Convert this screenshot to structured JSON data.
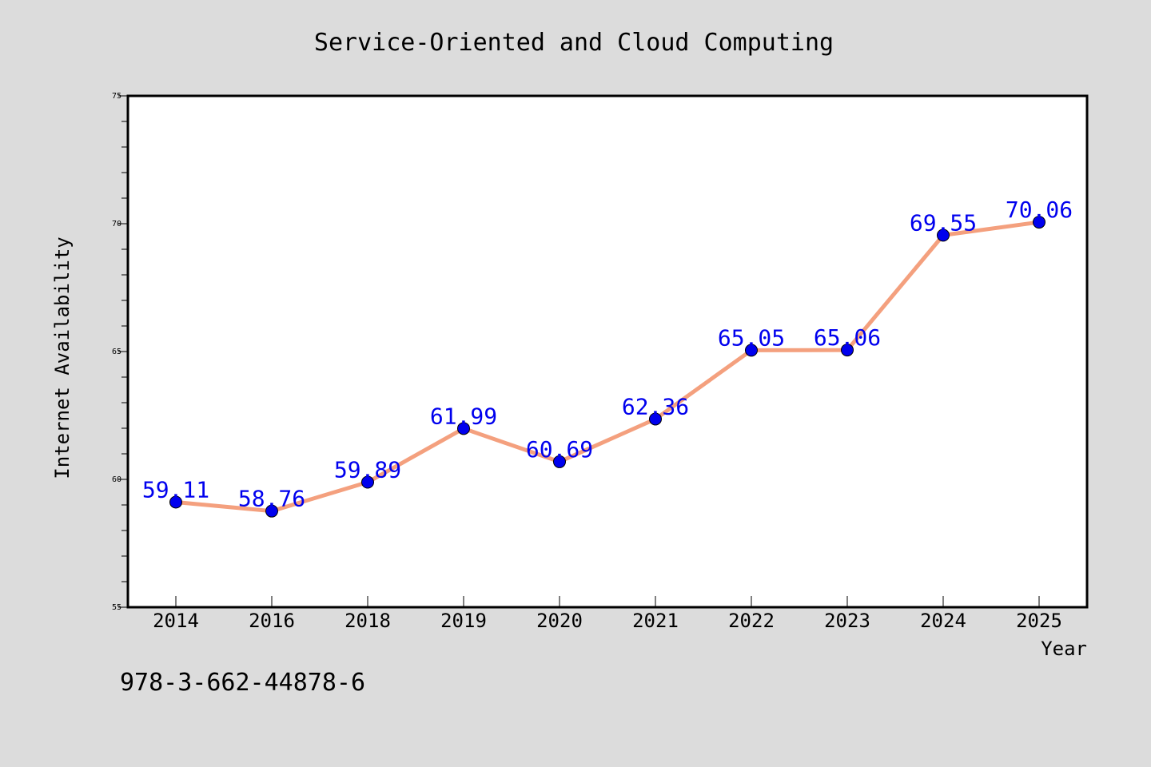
{
  "chart_data": {
    "type": "line",
    "title": "Service-Oriented and Cloud Computing",
    "xlabel": "Year",
    "ylabel": "Internet Availability",
    "categories": [
      "2014",
      "2016",
      "2018",
      "2019",
      "2020",
      "2021",
      "2022",
      "2023",
      "2024",
      "2025"
    ],
    "series": [
      {
        "values": [
          59.11,
          58.76,
          59.89,
          61.99,
          60.69,
          62.36,
          65.05,
          65.06,
          69.55,
          70.06
        ],
        "labels": [
          "59.11",
          "58.76",
          "59.89",
          "61.99",
          "60.69",
          "62.36",
          "65.05",
          "65.06",
          "69.55",
          "70.06"
        ],
        "line_color": "#f4a07e",
        "marker_color": "#0000ee"
      }
    ],
    "ylim": [
      55,
      75
    ],
    "yticks": [
      "55",
      "60",
      "65",
      "70",
      "75"
    ],
    "grid": false,
    "legend": "none"
  },
  "annotation": "978-3-662-44878-6",
  "colors": {
    "background": "#dcdcdc",
    "plot_background": "#ffffff",
    "label_color": "#0000ee"
  }
}
